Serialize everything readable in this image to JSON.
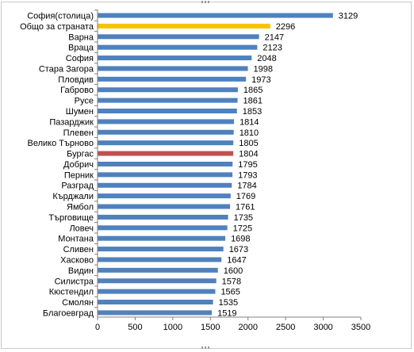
{
  "chart_data": {
    "type": "bar",
    "orientation": "horizontal",
    "title": "",
    "xlabel": "",
    "ylabel": "",
    "xlim": [
      0,
      3500
    ],
    "x_ticks": [
      0,
      500,
      1000,
      1500,
      2000,
      2500,
      3000,
      3500
    ],
    "grid": false,
    "legend": "none",
    "colors": {
      "default": "#4f81bd",
      "highlight_total": "#f5c400",
      "highlight_city": "#c0504d"
    },
    "categories": [
      "София(столица)",
      "Общо за страната",
      "Варна",
      "Враца",
      "София",
      "Стара Загора",
      "Пловдив",
      "Габрово",
      "Русе",
      "Шумен",
      "Пазарджик",
      "Плевен",
      "Велико Търново",
      "Бургас",
      "Добрич",
      "Перник",
      "Разград",
      "Кърджали",
      "Ямбол",
      "Търговище",
      "Ловеч",
      "Монтана",
      "Сливен",
      "Хасково",
      "Видин",
      "Силистра",
      "Кюстендил",
      "Смолян",
      "Благоевград"
    ],
    "values": [
      3129,
      2296,
      2147,
      2123,
      2048,
      1998,
      1973,
      1865,
      1861,
      1853,
      1814,
      1810,
      1805,
      1804,
      1795,
      1793,
      1784,
      1769,
      1761,
      1735,
      1725,
      1698,
      1673,
      1647,
      1600,
      1578,
      1565,
      1535,
      1519
    ],
    "bar_colors": [
      "default",
      "highlight_total",
      "default",
      "default",
      "default",
      "default",
      "default",
      "default",
      "default",
      "default",
      "default",
      "default",
      "default",
      "highlight_city",
      "default",
      "default",
      "default",
      "default",
      "default",
      "default",
      "default",
      "default",
      "default",
      "default",
      "default",
      "default",
      "default",
      "default",
      "default"
    ]
  }
}
